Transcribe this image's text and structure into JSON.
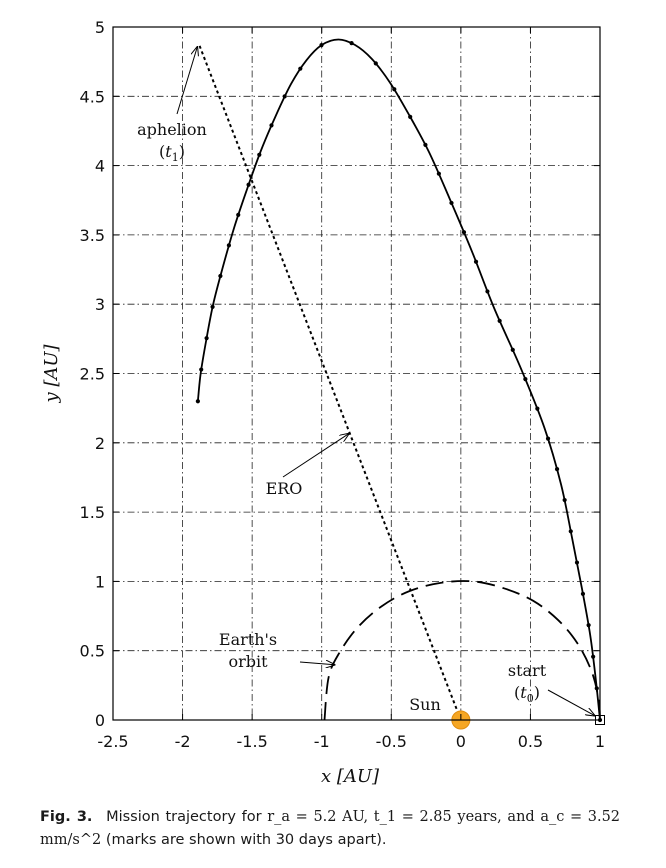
{
  "chart_data": {
    "type": "line",
    "title": "",
    "xlabel": "x [AU]",
    "ylabel": "y [AU]",
    "xlim": [
      -2.5,
      1
    ],
    "ylim": [
      0,
      5
    ],
    "x_ticks": [
      "-2.5",
      "-2",
      "-1.5",
      "-1",
      "-0.5",
      "0",
      "0.5",
      "1"
    ],
    "y_ticks": [
      "0",
      "0.5",
      "1",
      "1.5",
      "2",
      "2.5",
      "3",
      "3.5",
      "4",
      "4.5",
      "5"
    ],
    "grid": true,
    "series": [
      {
        "style": "solid-with-marks",
        "x": [
          1.0,
          0.97,
          0.93,
          0.87,
          0.8,
          0.72,
          0.6,
          0.43,
          0.24,
          0.08,
          -0.08,
          -0.23,
          -0.38,
          -0.51,
          -0.64,
          -0.76,
          -0.88,
          -1.0,
          -1.11,
          -1.22,
          -1.33,
          -1.44,
          -1.54,
          -1.63,
          -1.71,
          -1.78,
          -1.83,
          -1.87,
          -1.89
        ],
        "y": [
          0.0,
          0.29,
          0.61,
          0.95,
          1.31,
          1.7,
          2.11,
          2.54,
          2.97,
          3.38,
          3.76,
          4.1,
          4.38,
          4.6,
          4.77,
          4.87,
          4.91,
          4.87,
          4.76,
          4.59,
          4.36,
          4.1,
          3.82,
          3.55,
          3.27,
          3.0,
          2.74,
          2.5,
          2.3
        ]
      },
      {
        "style": "dotted",
        "x": [
          0.0,
          -1.88
        ],
        "y": [
          0.0,
          4.87
        ]
      },
      {
        "style": "dashed",
        "x": [
          -0.98,
          -0.95,
          -0.87,
          -0.74,
          -0.57,
          -0.37,
          -0.14,
          0.09,
          0.31,
          0.52,
          0.7,
          0.84,
          0.94,
          0.99,
          1.0
        ],
        "y": [
          0.0,
          0.31,
          0.49,
          0.67,
          0.82,
          0.93,
          0.99,
          1.0,
          0.95,
          0.86,
          0.72,
          0.55,
          0.35,
          0.15,
          0.0
        ]
      }
    ],
    "annotations": [
      {
        "lines": [
          "aphelion",
          "(t1)"
        ],
        "point": [
          -1.88,
          4.87
        ]
      },
      {
        "lines": [
          "ERO"
        ],
        "point": [
          -0.82,
          2.08
        ]
      },
      {
        "lines": [
          "Earth's",
          "orbit"
        ],
        "point": [
          -0.9,
          0.42
        ]
      },
      {
        "lines": [
          "start",
          "(t0)"
        ],
        "point": [
          0.99,
          0.01
        ]
      },
      {
        "lines": [
          "Sun"
        ],
        "point": [
          0.0,
          0.0
        ]
      }
    ],
    "sun_color": "#f5a623",
    "start_marker": "open-square"
  },
  "caption": {
    "label": "Fig. 3.",
    "text_before": "Mission trajectory for",
    "ra_value": "r_a = 5.2 AU,",
    "t1_value": "t_1 = 2.85 years, and",
    "ac_value": "a_c = 3.52 mm/s^2",
    "text_after": "(marks are shown with 30 days apart)."
  }
}
